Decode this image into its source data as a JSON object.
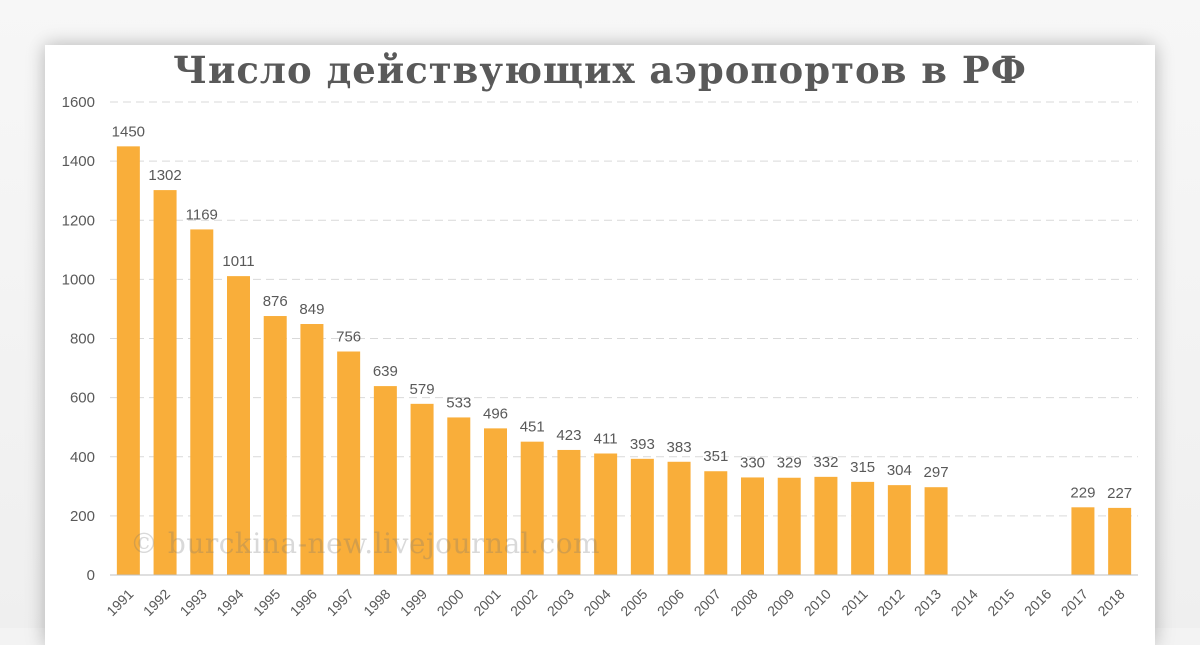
{
  "chart_data": {
    "type": "bar",
    "title": "Число действующих аэропортов в РФ",
    "xlabel": "",
    "ylabel": "",
    "ylim": [
      0,
      1600
    ],
    "yticks": [
      0,
      200,
      400,
      600,
      800,
      1000,
      1200,
      1400,
      1600
    ],
    "grid": true,
    "legend": "none",
    "categories": [
      "1991",
      "1992",
      "1993",
      "1994",
      "1995",
      "1996",
      "1997",
      "1998",
      "1999",
      "2000",
      "2001",
      "2002",
      "2003",
      "2004",
      "2005",
      "2006",
      "2007",
      "2008",
      "2009",
      "2010",
      "2011",
      "2012",
      "2013",
      "2014",
      "2015",
      "2016",
      "2017",
      "2018"
    ],
    "values": [
      1450,
      1302,
      1169,
      1011,
      876,
      849,
      756,
      639,
      579,
      533,
      496,
      451,
      423,
      411,
      393,
      383,
      351,
      330,
      329,
      332,
      315,
      304,
      297,
      null,
      null,
      null,
      229,
      227
    ],
    "bar_color": "#f9ae3a",
    "grid_color": "#d9d9d9",
    "text_color": "#595959"
  },
  "watermark": "© burckina-new.livejournal.com"
}
